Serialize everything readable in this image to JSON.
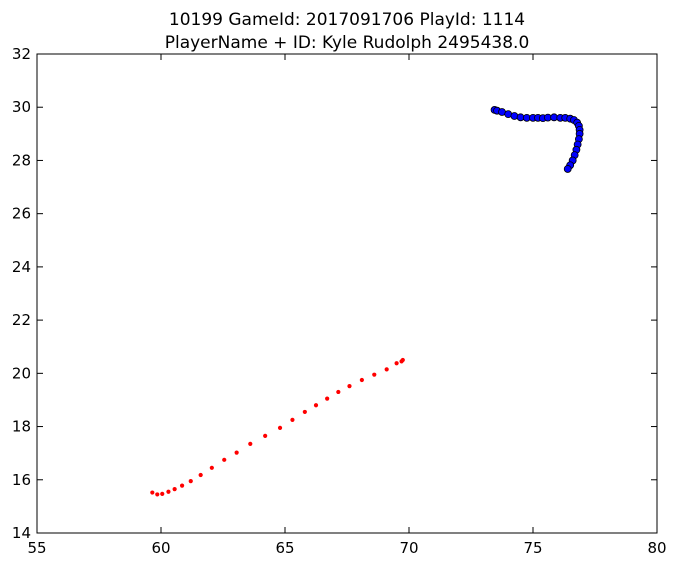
{
  "chart_data": {
    "type": "scatter",
    "title": "10199 GameId: 2017091706 PlayId: 1114",
    "subtitle": "PlayerName + ID: Kyle Rudolph 2495438.0",
    "xlabel": "",
    "ylabel": "",
    "xlim": [
      55,
      80
    ],
    "ylim": [
      14,
      32
    ],
    "x_ticks": [
      "55",
      "60",
      "65",
      "70",
      "75",
      "80"
    ],
    "y_ticks": [
      "14",
      "16",
      "18",
      "20",
      "22",
      "24",
      "26",
      "28",
      "30",
      "32"
    ],
    "grid": false,
    "series": [
      {
        "color": "#ff0000",
        "marker": "small-dot",
        "points": [
          [
            69.75,
            20.5
          ],
          [
            69.7,
            20.45
          ],
          [
            69.5,
            20.38
          ],
          [
            69.1,
            20.15
          ],
          [
            68.6,
            19.95
          ],
          [
            68.1,
            19.75
          ],
          [
            67.6,
            19.52
          ],
          [
            67.15,
            19.3
          ],
          [
            66.7,
            19.05
          ],
          [
            66.25,
            18.8
          ],
          [
            65.8,
            18.55
          ],
          [
            65.3,
            18.25
          ],
          [
            64.8,
            17.95
          ],
          [
            64.2,
            17.65
          ],
          [
            63.6,
            17.35
          ],
          [
            63.05,
            17.02
          ],
          [
            62.55,
            16.75
          ],
          [
            62.05,
            16.45
          ],
          [
            61.6,
            16.18
          ],
          [
            61.2,
            15.95
          ],
          [
            60.85,
            15.78
          ],
          [
            60.55,
            15.65
          ],
          [
            60.3,
            15.55
          ],
          [
            60.05,
            15.47
          ],
          [
            59.85,
            15.45
          ],
          [
            59.65,
            15.52
          ]
        ]
      },
      {
        "color": "#0000ff",
        "marker": "circle",
        "points": [
          [
            73.45,
            29.9
          ],
          [
            73.55,
            29.87
          ],
          [
            73.75,
            29.82
          ],
          [
            74.0,
            29.74
          ],
          [
            74.25,
            29.67
          ],
          [
            74.5,
            29.62
          ],
          [
            74.75,
            29.6
          ],
          [
            75.0,
            29.6
          ],
          [
            75.2,
            29.6
          ],
          [
            75.4,
            29.59
          ],
          [
            75.6,
            29.61
          ],
          [
            75.85,
            29.62
          ],
          [
            76.1,
            29.6
          ],
          [
            76.3,
            29.6
          ],
          [
            76.5,
            29.57
          ],
          [
            76.65,
            29.52
          ],
          [
            76.78,
            29.42
          ],
          [
            76.85,
            29.3
          ],
          [
            76.88,
            29.15
          ],
          [
            76.88,
            29.0
          ],
          [
            76.85,
            28.8
          ],
          [
            76.8,
            28.6
          ],
          [
            76.75,
            28.4
          ],
          [
            76.68,
            28.2
          ],
          [
            76.6,
            28.0
          ],
          [
            76.5,
            27.82
          ],
          [
            76.4,
            27.68
          ]
        ]
      }
    ]
  }
}
